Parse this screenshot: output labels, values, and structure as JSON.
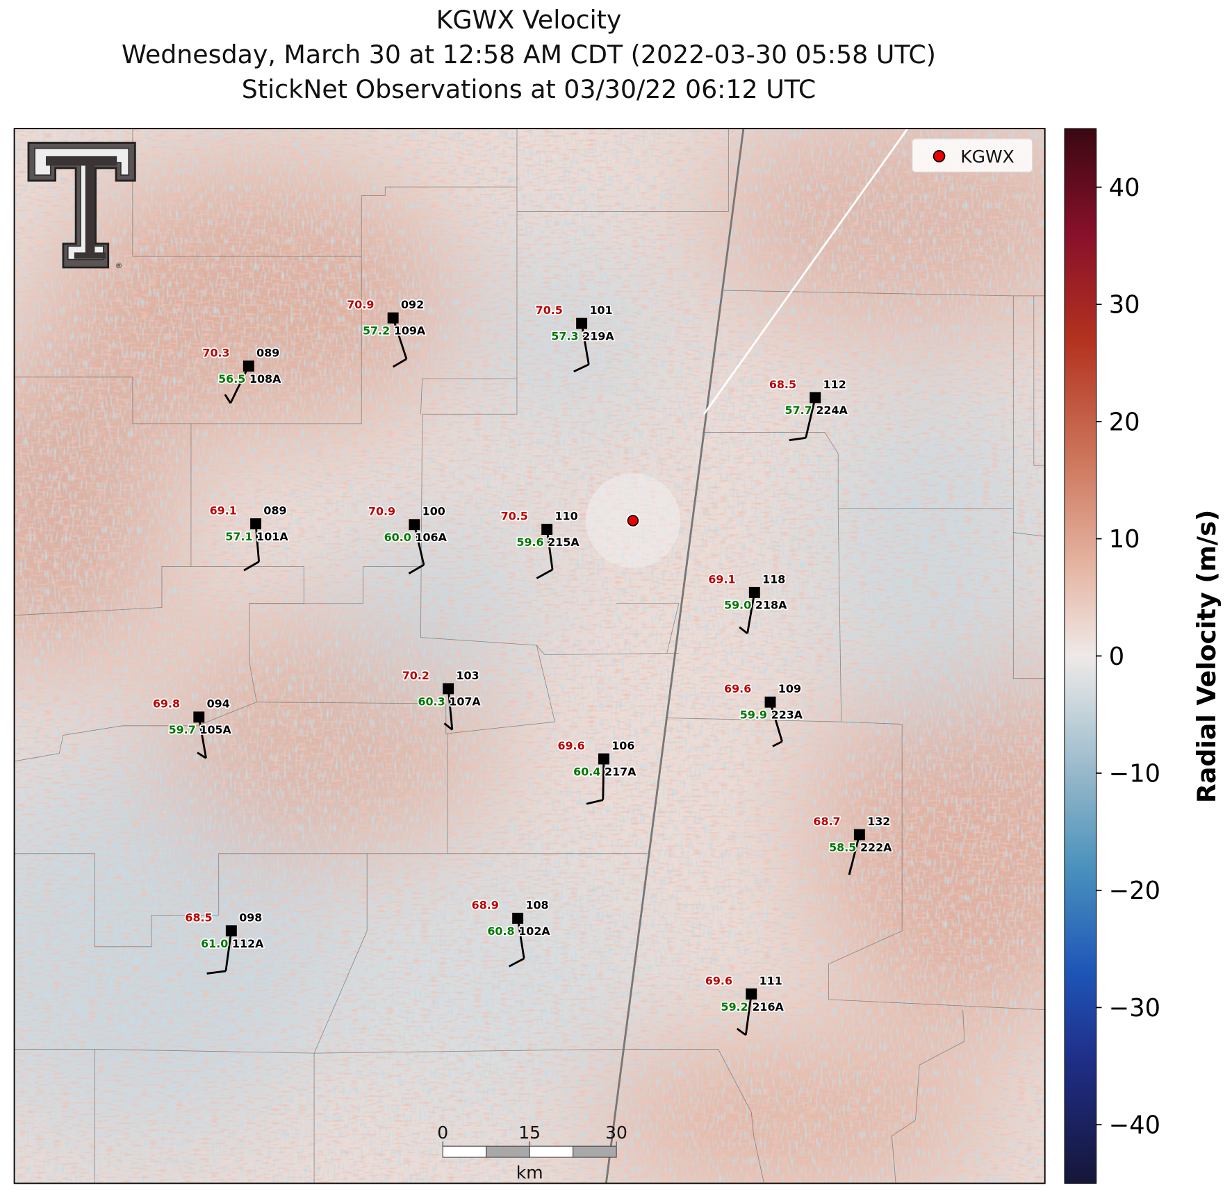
{
  "title": [
    "KGWX Velocity",
    "Wednesday, March 30 at 12:58 AM CDT (2022-03-30 05:58 UTC)",
    "StickNet Observations at 03/30/22 06:12 UTC"
  ],
  "legend": {
    "label": "KGWX"
  },
  "logo": {
    "mark": "®"
  },
  "stations": [
    {
      "temp": "70.3",
      "dewpoint": "56.5",
      "code": "089",
      "id": "108A"
    },
    {
      "temp": "70.9",
      "dewpoint": "57.2",
      "code": "092",
      "id": "109A"
    },
    {
      "temp": "70.5",
      "dewpoint": "57.3",
      "code": "101",
      "id": "219A"
    },
    {
      "temp": "68.5",
      "dewpoint": "57.7",
      "code": "112",
      "id": "224A"
    },
    {
      "temp": "69.1",
      "dewpoint": "57.1",
      "code": "089",
      "id": "101A"
    },
    {
      "temp": "70.9",
      "dewpoint": "60.0",
      "code": "100",
      "id": "106A"
    },
    {
      "temp": "70.5",
      "dewpoint": "59.6",
      "code": "110",
      "id": "215A"
    },
    {
      "temp": "69.1",
      "dewpoint": "59.0",
      "code": "118",
      "id": "218A"
    },
    {
      "temp": "69.8",
      "dewpoint": "59.7",
      "code": "094",
      "id": "105A"
    },
    {
      "temp": "70.2",
      "dewpoint": "60.3",
      "code": "103",
      "id": "107A"
    },
    {
      "temp": "69.6",
      "dewpoint": "59.9",
      "code": "109",
      "id": "223A"
    },
    {
      "temp": "69.6",
      "dewpoint": "60.4",
      "code": "106",
      "id": "217A"
    },
    {
      "temp": "68.7",
      "dewpoint": "58.5",
      "code": "132",
      "id": "222A"
    },
    {
      "temp": "68.5",
      "dewpoint": "61.0",
      "code": "098",
      "id": "112A"
    },
    {
      "temp": "68.9",
      "dewpoint": "60.8",
      "code": "108",
      "id": "102A"
    },
    {
      "temp": "69.6",
      "dewpoint": "59.2",
      "code": "111",
      "id": "216A"
    }
  ],
  "colorbar": {
    "label": "Radial Velocity (m/s)",
    "lim": [
      -45,
      45
    ],
    "ticks": [
      {
        "value": -40,
        "label": "−40"
      },
      {
        "value": -30,
        "label": "−30"
      },
      {
        "value": -20,
        "label": "−20"
      },
      {
        "value": -10,
        "label": "−10"
      },
      0,
      10,
      20,
      30,
      40
    ]
  },
  "scale_bar": {
    "ticks": [
      0,
      15,
      30
    ],
    "unit": "km"
  }
}
